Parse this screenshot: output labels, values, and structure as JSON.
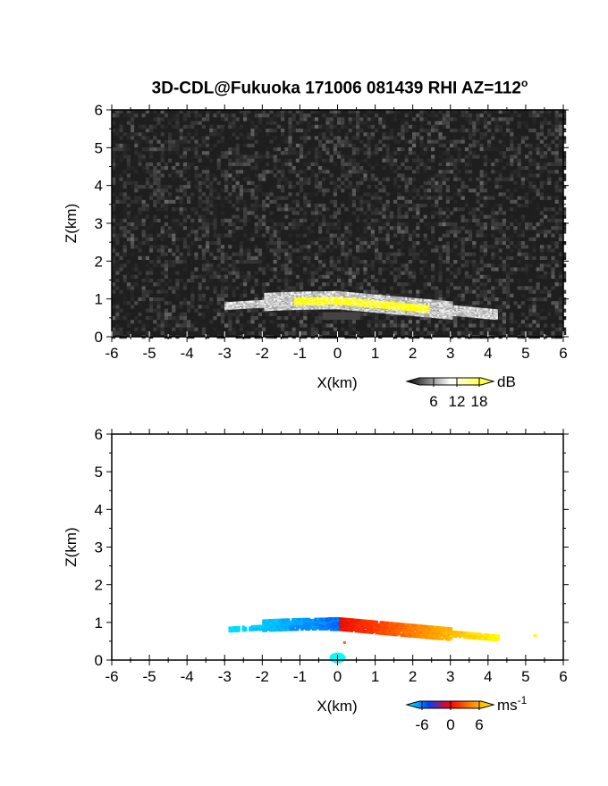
{
  "title_main": "3D-CDL@Fukuoka 171006 081439 RHI AZ=112",
  "title_sup": "o",
  "chart_data": [
    {
      "type": "heatmap",
      "panel": "reflectivity",
      "xlabel": "X(km)",
      "ylabel": "Z(km)",
      "xlim": [
        -6,
        6
      ],
      "ylim": [
        0,
        6
      ],
      "xticks": [
        "-6",
        "-5",
        "-4",
        "-3",
        "-2",
        "-1",
        "0",
        "1",
        "2",
        "3",
        "4",
        "5",
        "6"
      ],
      "yticks": [
        "0",
        "1",
        "2",
        "3",
        "4",
        "5",
        "6"
      ],
      "background": "noise (dark gray speckle)",
      "echo_layer": {
        "x_range": [
          -3.0,
          4.2
        ],
        "z_center_at_x0": 1.0,
        "description": "thin bright layer near 1 km, yellow core between x=-1 and x=2"
      },
      "colorbar": {
        "unit": "dB",
        "ticks": [
          "6",
          "12",
          "18"
        ],
        "colors": [
          "#000000",
          "#ffffff",
          "#ffff00"
        ]
      }
    },
    {
      "type": "heatmap",
      "panel": "doppler_velocity",
      "xlabel": "X(km)",
      "ylabel": "Z(km)",
      "xlim": [
        -6,
        6
      ],
      "ylim": [
        0,
        6
      ],
      "xticks": [
        "-6",
        "-5",
        "-4",
        "-3",
        "-2",
        "-1",
        "0",
        "1",
        "2",
        "3",
        "4",
        "5",
        "6"
      ],
      "yticks": [
        "0",
        "1",
        "2",
        "3",
        "4",
        "5",
        "6"
      ],
      "echo_layer": {
        "x_range": [
          -3.0,
          5.2
        ],
        "z_center_at_x0": 1.0,
        "description": "negative (blue/cyan) for x<0, positive (red/orange/yellow) for x>0"
      },
      "colorbar": {
        "unit": "ms",
        "unit_sup": "-1",
        "ticks": [
          "-6",
          "0",
          "6"
        ],
        "colors": [
          "#00ffff",
          "#0040ff",
          "#ff0000",
          "#ff8800",
          "#ffff00"
        ]
      }
    }
  ]
}
